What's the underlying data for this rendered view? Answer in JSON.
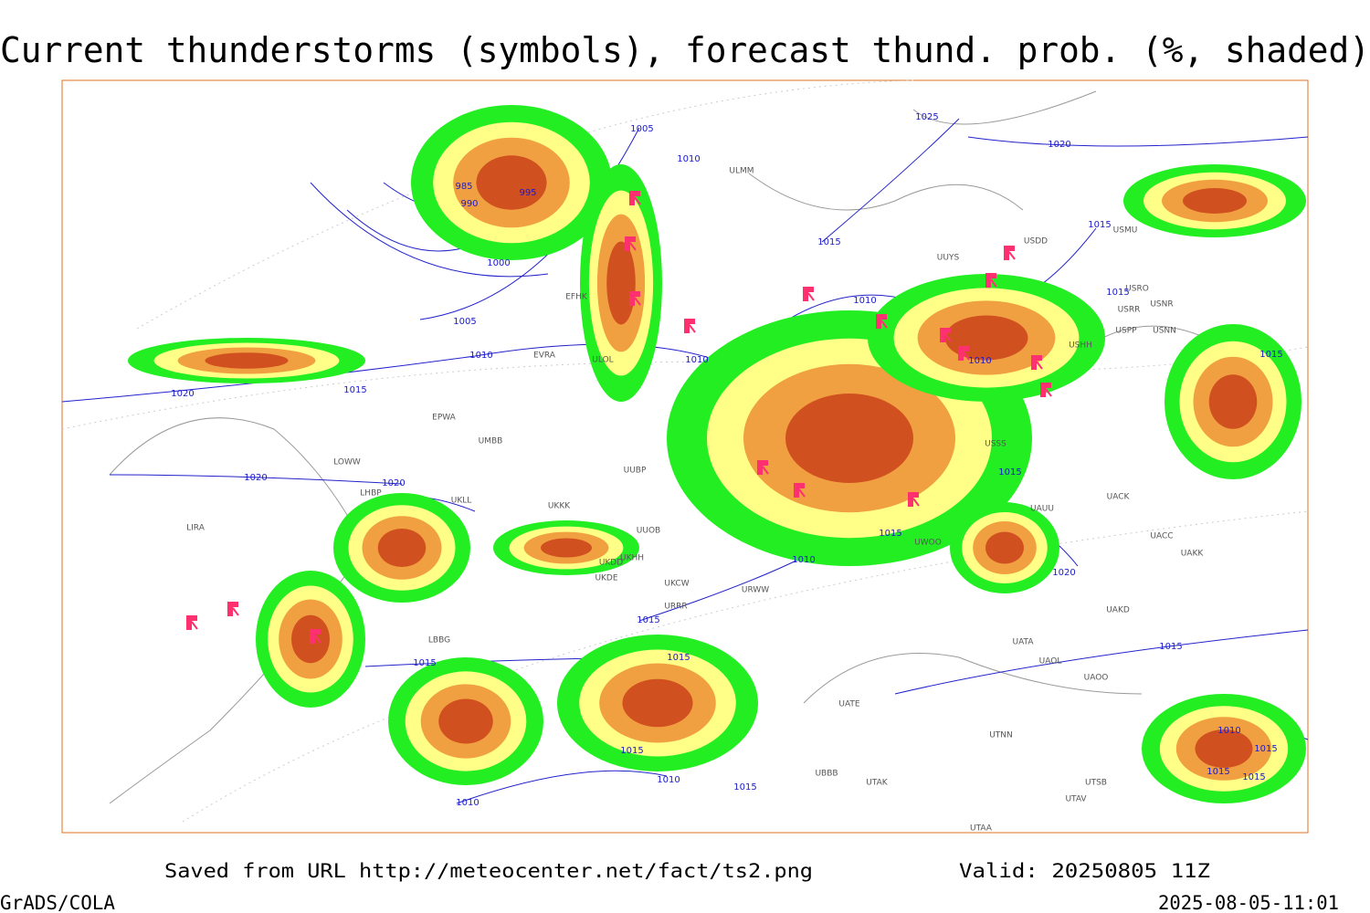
{
  "title": "Current thunderstorms (symbols), forecast thund. prob. (%, shaded)",
  "isobar_labels": [
    "1025",
    "1020",
    "1005",
    "1010",
    "985",
    "995",
    "990",
    "1000",
    "1015",
    "1015",
    "1005",
    "1010",
    "1015",
    "1020",
    "1010",
    "1010",
    "1010",
    "1015",
    "1015",
    "1020",
    "1020",
    "1015",
    "1015",
    "1010",
    "1020",
    "1015",
    "1015",
    "1015",
    "1015",
    "1015",
    "1010",
    "1015",
    "1010",
    "1010",
    "1015",
    "1015",
    "1015"
  ],
  "station_labels": [
    "ULMM",
    "UUYS",
    "USDD",
    "USMU",
    "USRO",
    "USRR",
    "USNR",
    "USPP",
    "USNN",
    "USHH",
    "ULOL",
    "EVRA",
    "EFHK",
    "EPWA",
    "UMBB",
    "LOWW",
    "LHBP",
    "UKLL",
    "UKKK",
    "UUOB",
    "UKHH",
    "UKDD",
    "UKDE",
    "UKCW",
    "URRR",
    "URWW",
    "LIRA",
    "LBBG",
    "UBBB",
    "UTAK",
    "UTSB",
    "UTAV",
    "UTAA",
    "UATA",
    "UAOL",
    "UAOO",
    "UAKD",
    "UACC",
    "UAKK",
    "UACK",
    "UAUU",
    "UATE",
    "UTNN",
    "USSS",
    "UUBP",
    "UWOO"
  ],
  "footer": {
    "source": "Saved from URL http://meteocenter.net/fact/ts2.png",
    "valid": "Valid: 20250805 11Z",
    "software": "GrADS/COLA",
    "timestamp": "2025-08-05-11:01"
  }
}
